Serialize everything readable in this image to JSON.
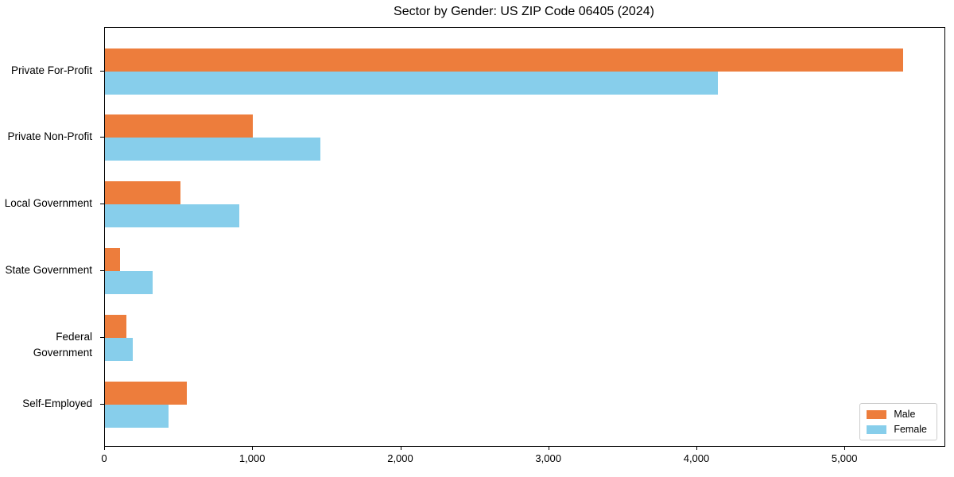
{
  "chart_data": {
    "type": "bar",
    "orientation": "horizontal",
    "title": "Sector by Gender: US ZIP Code 06405 (2024)",
    "categories": [
      "Private For-Profit",
      "Private Non-Profit",
      "Local Government",
      "State Government",
      "Federal Government",
      "Self-Employed"
    ],
    "series": [
      {
        "name": "Male",
        "color": "#ED7D3C",
        "values": [
          5390,
          1000,
          510,
          100,
          145,
          555
        ]
      },
      {
        "name": "Female",
        "color": "#87CEEB",
        "values": [
          4140,
          1455,
          905,
          320,
          190,
          430
        ]
      }
    ],
    "xlim": [
      0,
      5670
    ],
    "xticks": [
      0,
      1000,
      2000,
      3000,
      4000,
      5000
    ],
    "xtick_labels": [
      "0",
      "1,000",
      "2,000",
      "3,000",
      "4,000",
      "5,000"
    ],
    "ylabel": "",
    "xlabel": "",
    "grid": false,
    "legend_position": "lower right",
    "colors": {
      "spine": "#000000",
      "legend_border": "#cccccc",
      "background": "#ffffff"
    }
  }
}
